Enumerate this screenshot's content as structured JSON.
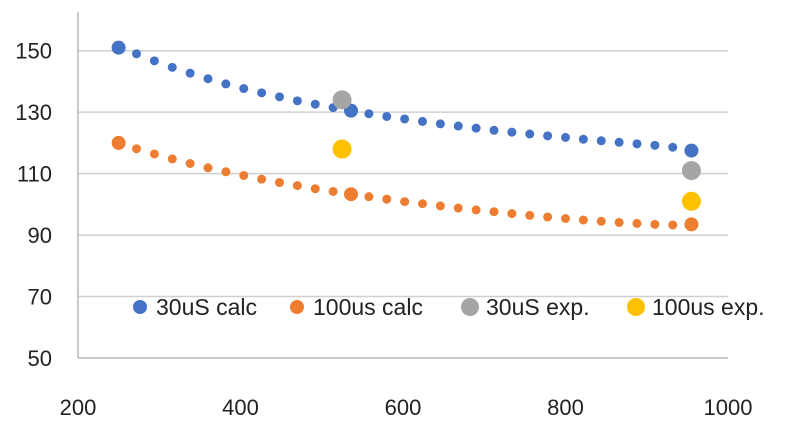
{
  "chart_data": {
    "type": "scatter",
    "title": "",
    "xlabel": "",
    "ylabel": "",
    "xlim": [
      200,
      1000
    ],
    "ylim": [
      50,
      160
    ],
    "xticks": [
      200,
      400,
      600,
      800,
      1000
    ],
    "yticks": [
      50,
      70,
      90,
      110,
      130,
      150
    ],
    "grid": "horizontal",
    "legend": "inside-bottom",
    "series": [
      {
        "name": "30uS calc",
        "color": "#4472C4",
        "marker": "small-dot",
        "x": [
          250,
          272,
          294,
          316,
          338,
          360,
          382,
          404,
          426,
          448,
          470,
          492,
          514,
          536,
          558,
          580,
          602,
          624,
          646,
          668,
          690,
          712,
          734,
          756,
          778,
          800,
          822,
          844,
          866,
          888,
          910,
          932,
          955
        ],
        "y": [
          151,
          149,
          146.7,
          144.6,
          142.7,
          140.9,
          139.2,
          137.7,
          136.3,
          135,
          133.7,
          132.6,
          131.5,
          130.5,
          129.5,
          128.6,
          127.8,
          127,
          126.2,
          125.5,
          124.8,
          124.1,
          123.5,
          122.9,
          122.3,
          121.8,
          121.2,
          120.7,
          120.2,
          119.7,
          119.2,
          118.6,
          117.5
        ]
      },
      {
        "name": "100us calc",
        "color": "#ED7D31",
        "marker": "small-dot",
        "x": [
          250,
          272,
          294,
          316,
          338,
          360,
          382,
          404,
          426,
          448,
          470,
          492,
          514,
          536,
          558,
          580,
          602,
          624,
          646,
          668,
          690,
          712,
          734,
          756,
          778,
          800,
          822,
          844,
          866,
          888,
          910,
          932,
          955
        ],
        "y": [
          120,
          118.1,
          116.4,
          114.8,
          113.3,
          111.9,
          110.6,
          109.4,
          108.2,
          107.1,
          106.1,
          105.1,
          104.2,
          103.3,
          102.5,
          101.7,
          100.9,
          100.2,
          99.5,
          98.8,
          98.2,
          97.6,
          97,
          96.4,
          95.9,
          95.4,
          94.9,
          94.5,
          94.1,
          93.8,
          93.5,
          93.3,
          93.5
        ]
      },
      {
        "name": "30uS exp.",
        "color": "#A5A5A5",
        "marker": "large-dot",
        "x": [
          525,
          955
        ],
        "y": [
          134,
          111
        ]
      },
      {
        "name": "100us exp.",
        "color": "#FFC000",
        "marker": "large-dot",
        "x": [
          525,
          955
        ],
        "y": [
          118,
          101
        ]
      }
    ]
  }
}
